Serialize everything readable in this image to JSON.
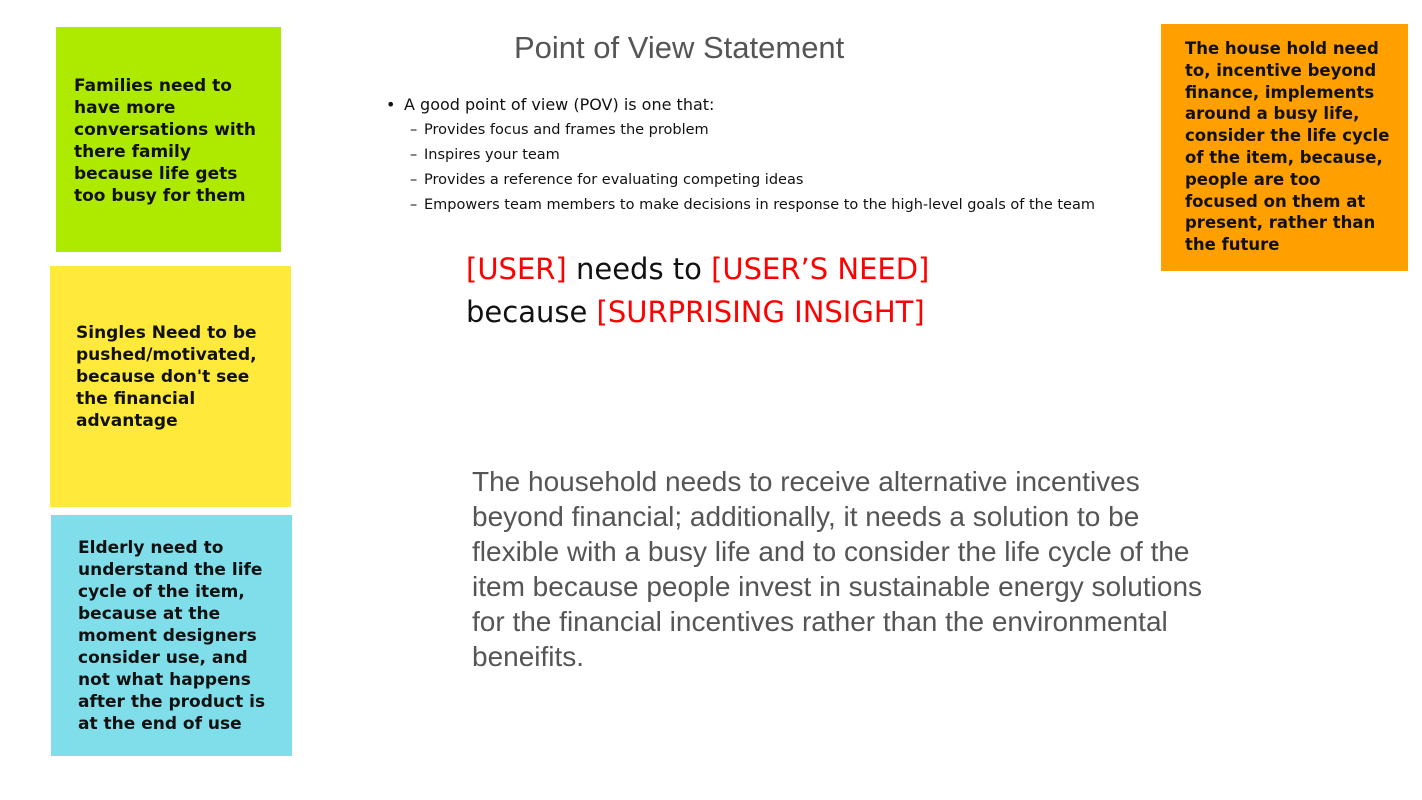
{
  "notes": {
    "families": "Families need to have more conversations with there family because life gets too busy for them",
    "singles": "Singles Need to be pushed/motivated, because don't see the financial advantage",
    "elderly": "Elderly need to understand the life cycle of the item, because at the moment designers consider use, and not what happens after the product is at the end of use",
    "household": "The house hold need to, incentive beyond finance, implements around a busy life, consider the life cycle of the item, because, people are too focused on them at present, rather than the future"
  },
  "title": "Point of View Statement",
  "pov": {
    "intro": "A good point of view (POV) is one that:",
    "items": [
      "Provides focus and frames the problem",
      "Inspires your team",
      "Provides a reference for evaluating competing ideas",
      "Empowers team members to make decisions in response to the high-level goals of the team"
    ]
  },
  "template": {
    "user": "[USER]",
    "needs_to": "needs to",
    "users_need": "[USER’S NEED]",
    "because": "because",
    "insight": "[SURPRISING INSIGHT]"
  },
  "statement": "The household needs to receive alternative incentives beyond financial; additionally, it needs a solution to be flexible with a busy life and to consider the life cycle of the item because people invest in sustainable energy solutions for the financial incentives rather than the environmental beneifits.",
  "colors": {
    "families_note": "#aeea00",
    "singles_note": "#ffea3b",
    "elderly_note": "#7fdeea",
    "household_note": "#ff9f00",
    "template_placeholder": "#ff0000"
  }
}
